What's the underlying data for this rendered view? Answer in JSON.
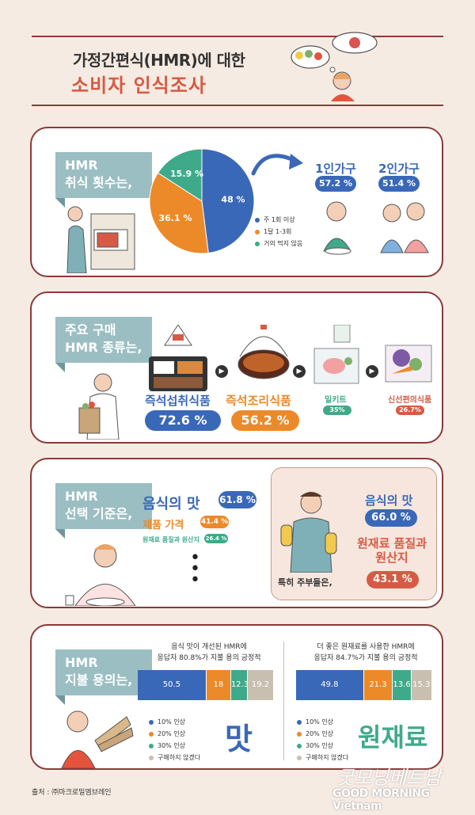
{
  "title_line1": "가정간편식(HMR)에 대한",
  "title_line2": "소비자 인식조사",
  "colors": {
    "blue": "#3a68b8",
    "orange": "#ec8a2a",
    "teal": "#3faa8a",
    "gray": "#c9bfb1",
    "red": "#d65a44",
    "frame": "#8a3a3a",
    "tag": "#9bbec3"
  },
  "section1": {
    "tag": "HMR\n취식 횟수는,",
    "legend": [
      "주 1회 이상",
      "1달 1-3회",
      "거의 먹지 않음"
    ],
    "single_label": "1인가구",
    "single_value": "57.2 %",
    "double_label": "2인가구",
    "double_value": "51.4 %"
  },
  "section2": {
    "tag": "주요 구매\nHMR 종류는,",
    "items": [
      {
        "label": "즉석섭취식품",
        "value": "72.6 %"
      },
      {
        "label": "즉석조리식품",
        "value": "56.2 %"
      },
      {
        "label": "밀키트",
        "value": "35%"
      },
      {
        "label": "신선편의식품",
        "value": "26.7%"
      }
    ]
  },
  "section3": {
    "tag": "HMR\n선택 기준은,",
    "criteria": [
      {
        "label": "음식의 맛",
        "value": "61.8 %"
      },
      {
        "label": "제품 가격",
        "value": "41.4 %"
      },
      {
        "label": "원재료 품질과 원산지",
        "value": "26.4 %"
      }
    ],
    "housewife_label": "특히 주부들은,",
    "hw_taste_label": "음식의 맛",
    "hw_taste_value": "66.0 %",
    "hw_quality_label": "원재료 품질과\n원산지",
    "hw_quality_value": "43.1 %"
  },
  "section4": {
    "tag": "HMR\n지불 용의는,",
    "left_caption_line1": "음식 맛이 개선된 HMR에",
    "left_caption_line2": "응답자 80.8%가 지불 용의 긍정적",
    "right_caption_line1": "더 좋은 원재료를 사용한 HMR에",
    "right_caption_line2": "응답자 84.7%가 지불 용의 긍정적",
    "left_big": "맛",
    "right_big": "원재료",
    "legend": [
      "10% 인상",
      "20% 인상",
      "30% 인상",
      "구매하지 않겠다"
    ]
  },
  "source": "출처 : ㈜마크로밀엠브레인",
  "watermark1": "굿모닝베트남",
  "watermark2": "GOOD MORNING Vietnam",
  "chart_data": [
    {
      "type": "pie",
      "categories": [
        "주 1회 이상",
        "1달 1-3회",
        "거의 먹지 않음"
      ],
      "values": [
        48,
        36.1,
        15.9
      ],
      "labels": [
        "48 %",
        "36.1 %",
        "15.9 %"
      ],
      "colors": [
        "#3a68b8",
        "#ec8a2a",
        "#3faa8a"
      ]
    },
    {
      "type": "bar",
      "stacked": true,
      "categories": [
        "10% 인상",
        "20% 인상",
        "30% 인상",
        "구매하지 않겠다"
      ],
      "series": [
        {
          "name": "맛",
          "values": [
            50.5,
            18,
            12.3,
            19.2
          ]
        },
        {
          "name": "원재료",
          "values": [
            49.8,
            21.3,
            13.6,
            15.3
          ]
        }
      ],
      "colors": [
        "#3a68b8",
        "#ec8a2a",
        "#3faa8a",
        "#c9bfb1"
      ]
    }
  ]
}
